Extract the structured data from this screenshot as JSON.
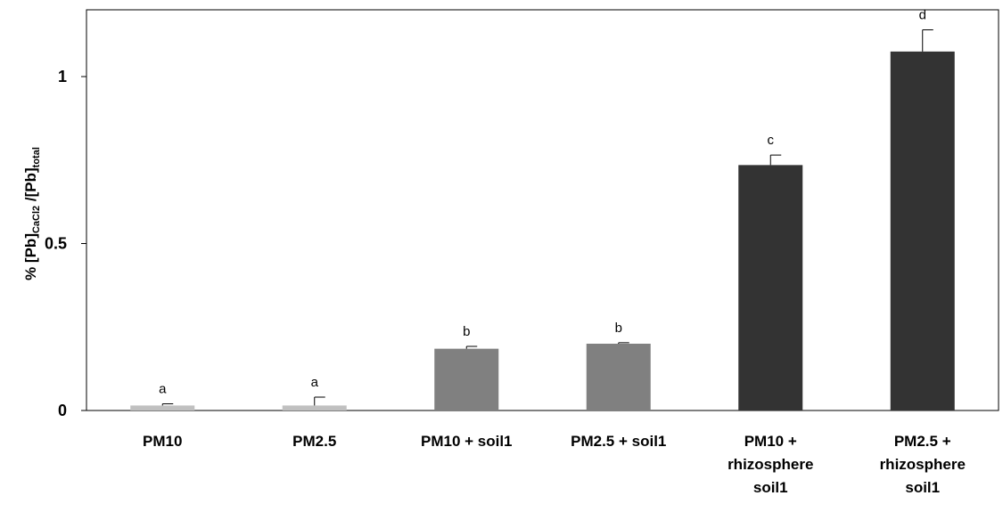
{
  "chart_data": {
    "type": "bar",
    "categories": [
      [
        "PM10"
      ],
      [
        "PM2.5"
      ],
      [
        "PM10 + soil1"
      ],
      [
        "PM2.5 + soil1"
      ],
      [
        "PM10 +",
        "rhizosphere",
        "soil1"
      ],
      [
        "PM2.5 +",
        "rhizosphere",
        "soil1"
      ]
    ],
    "values": [
      0.015,
      0.015,
      0.185,
      0.2,
      0.735,
      1.075
    ],
    "errors": [
      0.005,
      0.025,
      0.007,
      0.003,
      0.03,
      0.065
    ],
    "data_labels": [
      "a",
      "a",
      "b",
      "b",
      "c",
      "d"
    ],
    "bar_colors": [
      "#c0c0c0",
      "#c0c0c0",
      "#808080",
      "#808080",
      "#333333",
      "#333333"
    ],
    "ylabel": {
      "main1": "% [Pb]",
      "sub1": "CaCl2",
      "main2": " /[Pb]",
      "sub2": "total"
    },
    "yticks": [
      "0",
      "0.5",
      "1"
    ],
    "ylim": [
      0,
      1.2
    ],
    "grid": false,
    "legend": false
  }
}
